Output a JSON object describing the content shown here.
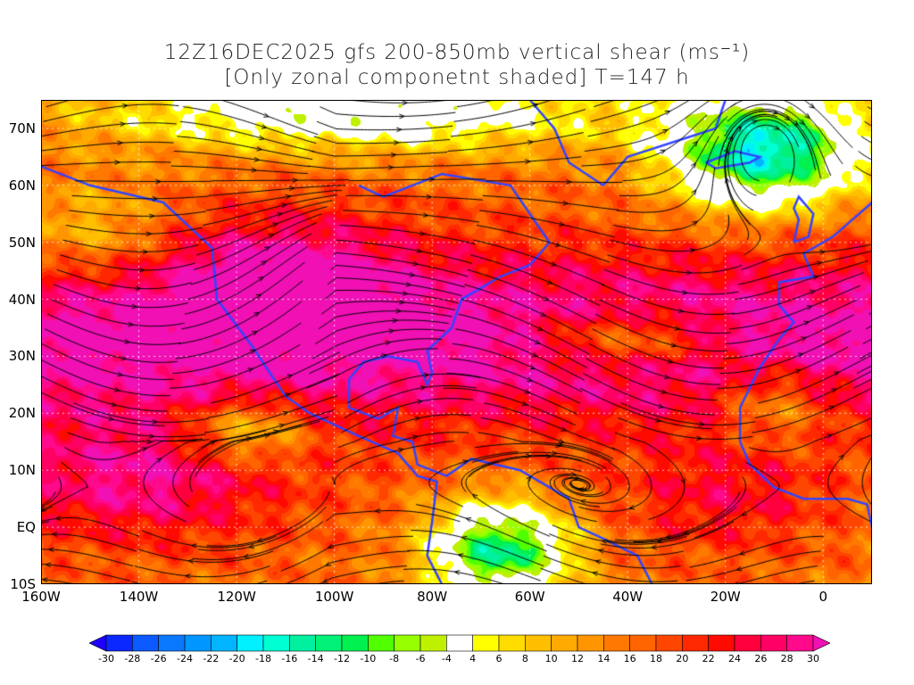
{
  "title": {
    "line1": "12Z16DEC2025 gfs 200-850mb vertical shear (ms⁻¹)",
    "line2": "[Only zonal componetnt shaded] T=147 h"
  },
  "map": {
    "lon_range": [
      -160,
      10
    ],
    "lat_range": [
      -10,
      75
    ],
    "lat_ticks": [
      {
        "label": "70N",
        "value": 70
      },
      {
        "label": "60N",
        "value": 60
      },
      {
        "label": "50N",
        "value": 50
      },
      {
        "label": "40N",
        "value": 40
      },
      {
        "label": "30N",
        "value": 30
      },
      {
        "label": "20N",
        "value": 20
      },
      {
        "label": "10N",
        "value": 10
      },
      {
        "label": "EQ",
        "value": 0
      },
      {
        "label": "10S",
        "value": -10
      }
    ],
    "lon_ticks": [
      {
        "label": "160W",
        "value": -160
      },
      {
        "label": "140W",
        "value": -140
      },
      {
        "label": "120W",
        "value": -120
      },
      {
        "label": "100W",
        "value": -100
      },
      {
        "label": "80W",
        "value": -80
      },
      {
        "label": "60W",
        "value": -60
      },
      {
        "label": "40W",
        "value": -40
      },
      {
        "label": "20W",
        "value": -20
      },
      {
        "label": "0",
        "value": 0
      }
    ]
  },
  "colorbar": {
    "labels": [
      "-30",
      "-28",
      "-26",
      "-24",
      "-22",
      "-20",
      "-18",
      "-16",
      "-14",
      "-12",
      "-10",
      "-8",
      "-6",
      "-4",
      "4",
      "6",
      "8",
      "10",
      "12",
      "14",
      "16",
      "18",
      "20",
      "22",
      "24",
      "26",
      "28",
      "30"
    ],
    "levels": [
      -30,
      -28,
      -26,
      -24,
      -22,
      -20,
      -18,
      -16,
      -14,
      -12,
      -10,
      -8,
      -6,
      -4,
      4,
      6,
      8,
      10,
      12,
      14,
      16,
      18,
      20,
      22,
      24,
      26,
      28,
      30
    ],
    "low_color": "#1e00ff",
    "high_color": "#f010b4",
    "colors": [
      "#0a28ff",
      "#0a5aff",
      "#0a78ff",
      "#0096ff",
      "#00b4ff",
      "#00f0ff",
      "#00ffd2",
      "#00f0a0",
      "#00f078",
      "#00f050",
      "#50ff00",
      "#96ff00",
      "#bef000",
      "#ffffff",
      "#ffff00",
      "#ffdc00",
      "#ffbe00",
      "#ffaa00",
      "#ff9600",
      "#ff7800",
      "#ff6400",
      "#ff4600",
      "#ff2800",
      "#ff0a00",
      "#ff003c",
      "#ff0064",
      "#ff0a8c"
    ]
  }
}
